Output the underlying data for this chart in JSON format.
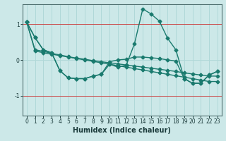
{
  "xlabel": "Humidex (Indice chaleur)",
  "bg_color": "#cce8e8",
  "grid_color": "#b0d8d8",
  "line_color": "#1a7a6e",
  "red_line_color": "#cc4444",
  "xlim": [
    -0.5,
    23.5
  ],
  "ylim": [
    -1.55,
    1.55
  ],
  "yticks": [
    -1,
    0,
    1
  ],
  "xticks": [
    0,
    1,
    2,
    3,
    4,
    5,
    6,
    7,
    8,
    9,
    10,
    11,
    12,
    13,
    14,
    15,
    16,
    17,
    18,
    19,
    20,
    21,
    22,
    23
  ],
  "series": [
    [
      1.05,
      0.62,
      0.28,
      0.2,
      -0.3,
      -0.5,
      -0.52,
      -0.52,
      -0.45,
      -0.4,
      -0.12,
      -0.2,
      -0.15,
      0.45,
      1.42,
      1.28,
      1.08,
      0.6,
      0.28,
      -0.52,
      -0.65,
      -0.65,
      -0.42,
      -0.32
    ],
    [
      1.05,
      0.62,
      0.28,
      0.2,
      -0.3,
      -0.5,
      -0.52,
      -0.52,
      -0.45,
      -0.4,
      -0.05,
      0.0,
      0.02,
      0.08,
      0.08,
      0.06,
      0.04,
      0.0,
      -0.03,
      -0.52,
      -0.65,
      -0.65,
      -0.42,
      -0.32
    ],
    [
      1.05,
      0.28,
      0.24,
      0.18,
      0.14,
      0.09,
      0.05,
      0.02,
      -0.02,
      -0.05,
      -0.08,
      -0.11,
      -0.14,
      -0.17,
      -0.2,
      -0.23,
      -0.26,
      -0.29,
      -0.32,
      -0.36,
      -0.39,
      -0.42,
      -0.45,
      -0.45
    ],
    [
      1.05,
      0.25,
      0.2,
      0.16,
      0.12,
      0.08,
      0.04,
      0.0,
      -0.04,
      -0.08,
      -0.12,
      -0.16,
      -0.2,
      -0.24,
      -0.28,
      -0.32,
      -0.36,
      -0.4,
      -0.44,
      -0.48,
      -0.52,
      -0.56,
      -0.6,
      -0.6
    ]
  ],
  "marker": "D",
  "markersize": 2.5,
  "linewidth": 1.0,
  "xlabel_fontsize": 7,
  "tick_fontsize": 5.5
}
